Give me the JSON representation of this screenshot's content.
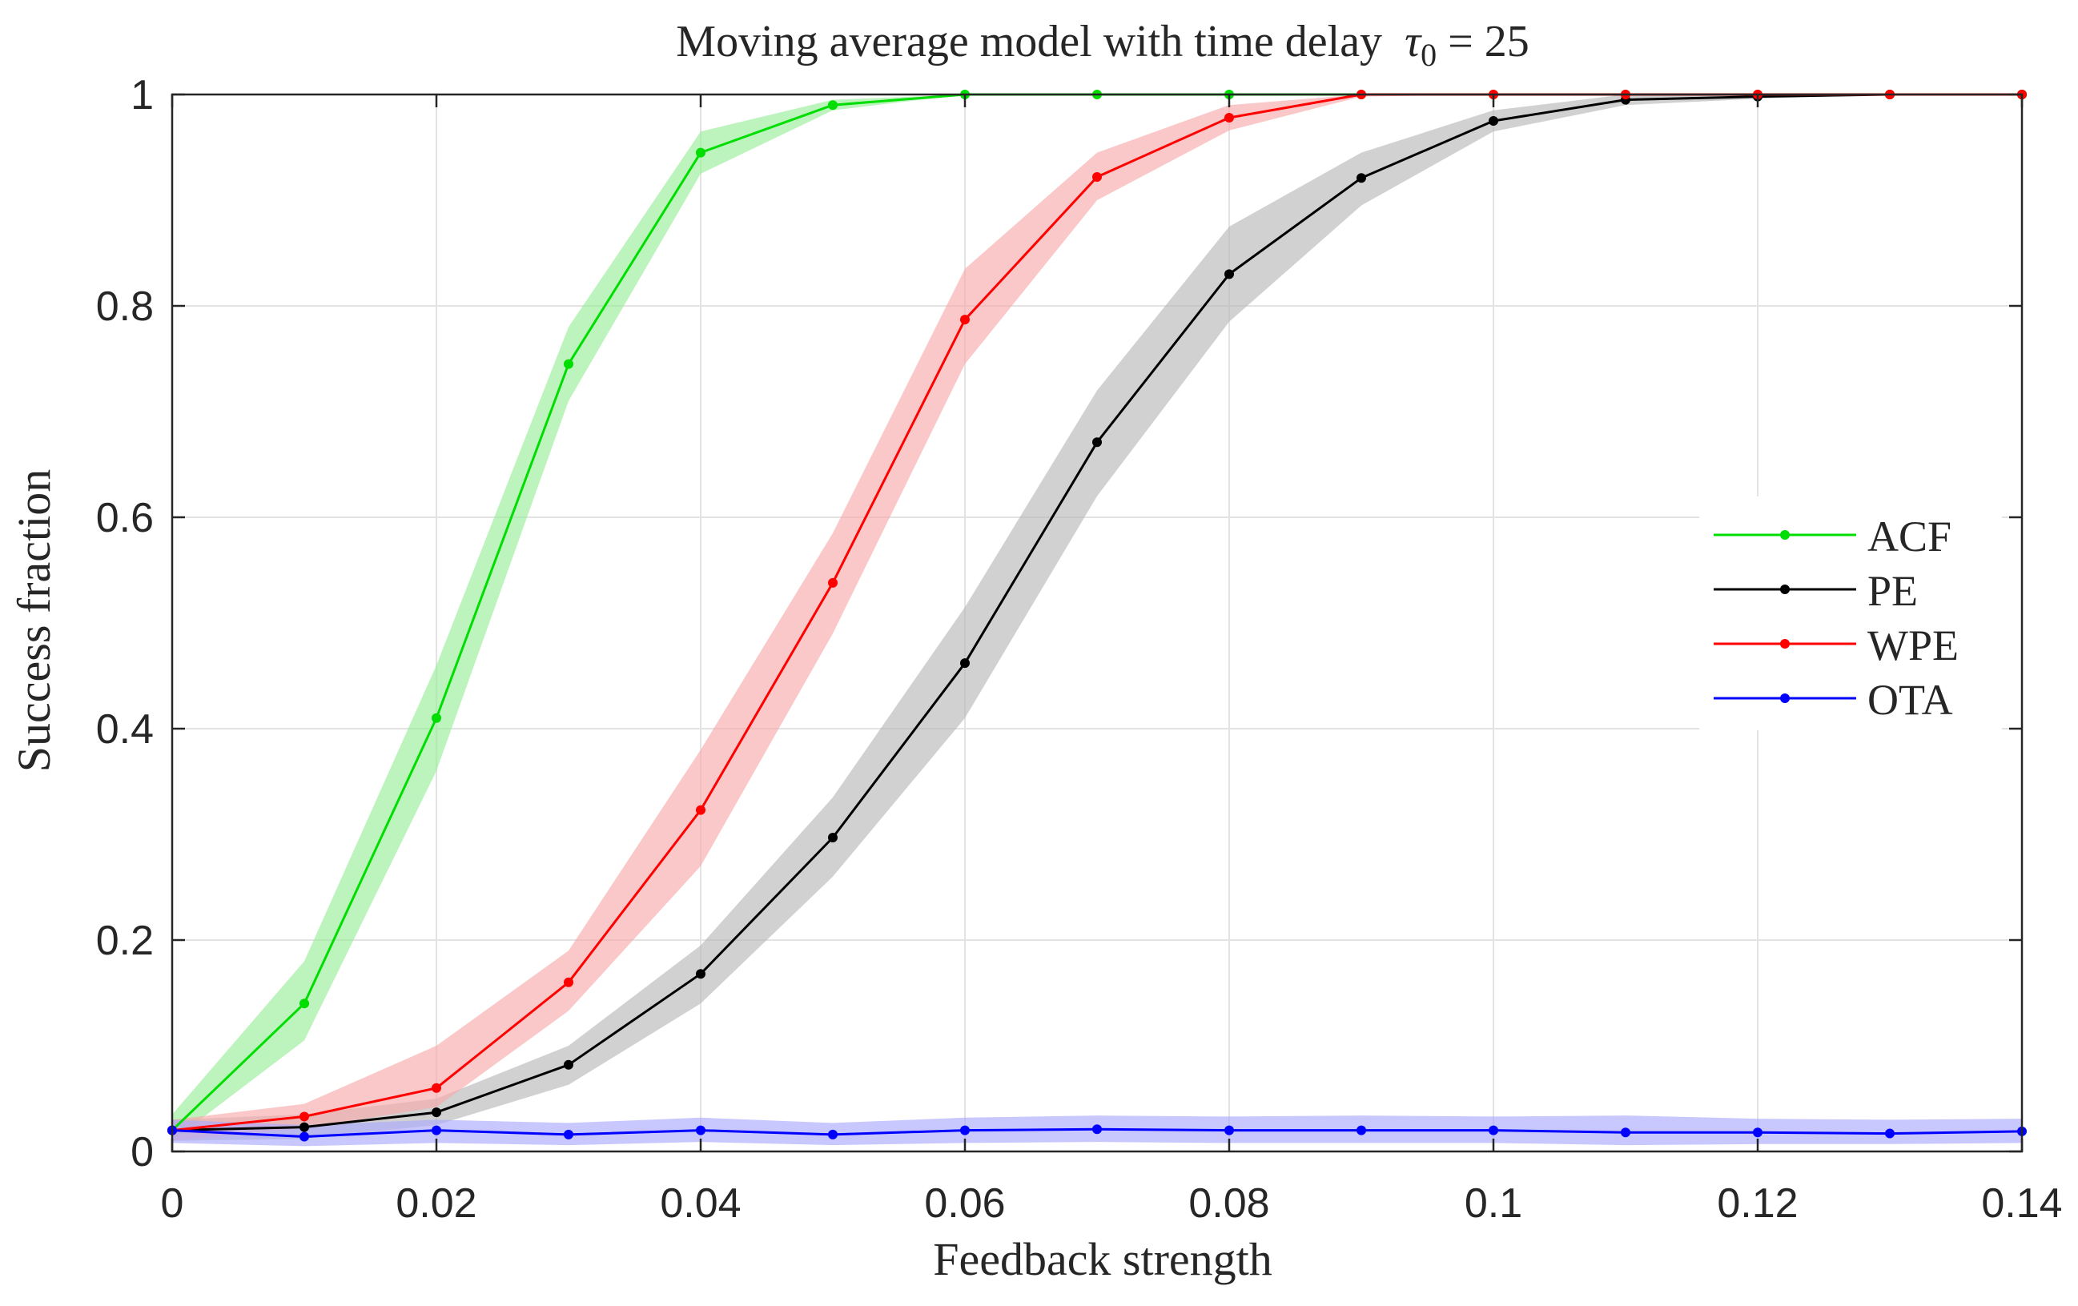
{
  "chart_data": {
    "type": "line",
    "title": "Moving average model with time delay",
    "title_symbol": "τ",
    "title_subscript": "0",
    "title_equation": " = 25",
    "xlabel": "Feedback strength",
    "ylabel": "Success fraction",
    "xlim": [
      0,
      0.14
    ],
    "ylim": [
      0,
      1
    ],
    "xticks": [
      0,
      0.02,
      0.04,
      0.06,
      0.08,
      0.1,
      0.12,
      0.14
    ],
    "xtick_labels": [
      "0",
      "0.02",
      "0.04",
      "0.06",
      "0.08",
      "0.1",
      "0.12",
      "0.14"
    ],
    "yticks": [
      0,
      0.2,
      0.4,
      0.6,
      0.8,
      1
    ],
    "ytick_labels": [
      "0",
      "0.2",
      "0.4",
      "0.6",
      "0.8",
      "1"
    ],
    "grid": true,
    "legend_position": "right",
    "x": [
      0,
      0.01,
      0.02,
      0.03,
      0.04,
      0.05,
      0.06,
      0.07,
      0.08,
      0.09,
      0.1,
      0.11,
      0.12,
      0.13,
      0.14
    ],
    "series": [
      {
        "name": "ACF",
        "color": "#00dd00",
        "band_color": "#99ee99",
        "values": [
          0.02,
          0.14,
          0.41,
          0.745,
          0.945,
          0.99,
          1,
          1,
          1,
          1,
          1,
          1,
          1,
          1,
          1
        ],
        "lower": [
          0.01,
          0.105,
          0.36,
          0.71,
          0.925,
          0.985,
          1,
          1,
          1,
          1,
          1,
          1,
          1,
          1,
          1
        ],
        "upper": [
          0.035,
          0.18,
          0.46,
          0.78,
          0.965,
          0.995,
          1,
          1,
          1,
          1,
          1,
          1,
          1,
          1,
          1
        ]
      },
      {
        "name": "PE",
        "color": "#000000",
        "band_color": "#b8b8b8",
        "values": [
          0.02,
          0.023,
          0.037,
          0.082,
          0.168,
          0.297,
          0.462,
          0.671,
          0.83,
          0.921,
          0.975,
          0.995,
          0.998,
          1,
          1
        ],
        "lower": [
          0.01,
          0.012,
          0.025,
          0.063,
          0.14,
          0.26,
          0.41,
          0.62,
          0.785,
          0.895,
          0.965,
          0.99,
          0.996,
          1,
          1
        ],
        "upper": [
          0.03,
          0.035,
          0.05,
          0.1,
          0.195,
          0.335,
          0.515,
          0.72,
          0.875,
          0.945,
          0.985,
          1,
          1,
          1,
          1
        ]
      },
      {
        "name": "WPE",
        "color": "#ff0000",
        "band_color": "#f8aaaa",
        "values": [
          0.02,
          0.033,
          0.06,
          0.16,
          0.323,
          0.538,
          0.787,
          0.922,
          0.978,
          1,
          1,
          1,
          1,
          1,
          1
        ],
        "lower": [
          0.01,
          0.022,
          0.042,
          0.133,
          0.27,
          0.49,
          0.745,
          0.9,
          0.966,
          0.998,
          1,
          1,
          1,
          1,
          1
        ],
        "upper": [
          0.03,
          0.045,
          0.1,
          0.19,
          0.38,
          0.585,
          0.835,
          0.945,
          0.99,
          1,
          1,
          1,
          1,
          1,
          1
        ]
      },
      {
        "name": "OTA",
        "color": "#0000ff",
        "band_color": "#aaaaff",
        "values": [
          0.02,
          0.014,
          0.02,
          0.016,
          0.02,
          0.016,
          0.02,
          0.021,
          0.02,
          0.02,
          0.02,
          0.018,
          0.018,
          0.017,
          0.019
        ],
        "lower": [
          0.008,
          0.005,
          0.008,
          0.006,
          0.009,
          0.006,
          0.008,
          0.009,
          0.008,
          0.008,
          0.008,
          0.006,
          0.007,
          0.007,
          0.008
        ],
        "upper": [
          0.03,
          0.025,
          0.03,
          0.027,
          0.032,
          0.027,
          0.032,
          0.034,
          0.033,
          0.034,
          0.033,
          0.034,
          0.031,
          0.03,
          0.031
        ]
      }
    ]
  }
}
